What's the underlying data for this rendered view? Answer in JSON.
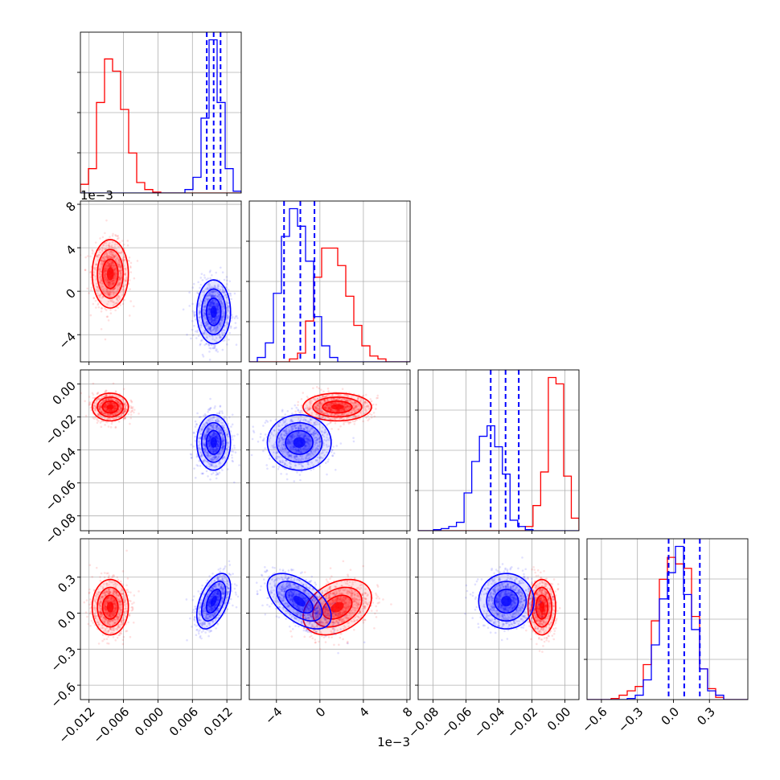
{
  "chart_data": {
    "type": "corner",
    "colors": {
      "red": "#ff0000",
      "blue": "#0000ff",
      "grid": "#b0b0b0",
      "axis": "#000000"
    },
    "grid": true,
    "params": [
      {
        "range": [
          -0.0135,
          0.0145
        ],
        "ticks": [
          -0.012,
          -0.006,
          0.0,
          0.006,
          0.012
        ],
        "tick_labels": [
          "−0.012",
          "−0.006",
          "0.000",
          "0.006",
          "0.012"
        ],
        "offset_text": "",
        "hist_red": [
          0.05,
          0.14,
          0.52,
          0.77,
          0.7,
          0.48,
          0.23,
          0.06,
          0.02,
          0.005,
          0.0,
          0.0,
          0.0,
          0.0,
          0.0,
          0.0,
          0.0,
          0.0,
          0.0,
          0.0
        ],
        "hist_blue": [
          0.0,
          0.0,
          0.0,
          0.0,
          0.0,
          0.0,
          0.0,
          0.0,
          0.0,
          0.0,
          0.0,
          0.0,
          0.0,
          0.02,
          0.09,
          0.43,
          0.88,
          0.52,
          0.14,
          0.01
        ],
        "quantiles_blue": [
          0.0085,
          0.0097,
          0.0109
        ]
      },
      {
        "range": [
          -0.0065,
          0.0083
        ],
        "ticks": [
          -0.004,
          0.0,
          0.004,
          0.008
        ],
        "tick_labels": [
          "−4",
          "0",
          "4",
          "8"
        ],
        "offset_text": "1e−3",
        "hist_red": [
          0.0,
          0.0,
          0.0,
          0.0,
          0.0,
          0.02,
          0.06,
          0.28,
          0.58,
          0.78,
          0.78,
          0.66,
          0.45,
          0.25,
          0.11,
          0.04,
          0.02,
          0.0,
          0.0,
          0.0
        ],
        "hist_blue": [
          0.0,
          0.03,
          0.13,
          0.47,
          0.86,
          1.05,
          0.93,
          0.69,
          0.31,
          0.11,
          0.03,
          0.0,
          0.0,
          0.0,
          0.0,
          0.0,
          0.0,
          0.0,
          0.0,
          0.0
        ],
        "quantiles_blue": [
          -0.0033,
          -0.0018,
          -0.0005
        ]
      },
      {
        "range": [
          -0.089,
          0.0085
        ],
        "ticks": [
          -0.08,
          -0.06,
          -0.04,
          -0.02,
          0.0
        ],
        "tick_labels": [
          "−0.08",
          "−0.06",
          "−0.04",
          "−0.02",
          "0.00"
        ],
        "offset_text": "",
        "hist_red": [
          0.0,
          0.0,
          0.0,
          0.0,
          0.0,
          0.0,
          0.0,
          0.0,
          0.0,
          0.0,
          0.0,
          0.0,
          0.0,
          0.0,
          0.02,
          0.12,
          0.28,
          0.73,
          0.7,
          0.26,
          0.06
        ],
        "hist_blue": [
          0.0,
          0.0,
          0.005,
          0.01,
          0.02,
          0.04,
          0.18,
          0.33,
          0.45,
          0.5,
          0.4,
          0.27,
          0.05,
          0.02,
          0.005,
          0.0,
          0.0,
          0.0,
          0.0,
          0.0,
          0.0
        ],
        "quantiles_blue": [
          -0.045,
          -0.036,
          -0.028
        ]
      },
      {
        "range": [
          -0.72,
          0.62
        ],
        "ticks": [
          -0.6,
          -0.3,
          0.0,
          0.3
        ],
        "tick_labels": [
          "−0.6",
          "−0.3",
          "0.0",
          "0.3"
        ],
        "offset_text": "",
        "hist_red": [
          0.0,
          0.0,
          0.0,
          0.005,
          0.02,
          0.04,
          0.06,
          0.16,
          0.36,
          0.55,
          0.65,
          0.62,
          0.6,
          0.38,
          0.14,
          0.05,
          0.01,
          0.0,
          0.0,
          0.0
        ],
        "hist_blue": [
          0.0,
          0.0,
          0.0,
          0.0,
          0.0,
          0.005,
          0.02,
          0.09,
          0.25,
          0.46,
          0.58,
          0.7,
          0.48,
          0.32,
          0.14,
          0.04,
          0.02,
          0.0,
          0.0,
          0.0
        ],
        "quantiles_blue": [
          -0.04,
          0.09,
          0.22
        ]
      }
    ],
    "groups": [
      {
        "name": "",
        "color": "red",
        "mean": [
          -0.0083,
          0.0016,
          -0.014,
          0.05
        ],
        "sd": [
          0.0015,
          0.0015,
          0.004,
          0.11
        ]
      },
      {
        "name": "",
        "color": "blue",
        "mean": [
          0.0097,
          -0.0019,
          -0.0355,
          0.1
        ],
        "sd": [
          0.0014,
          0.0014,
          0.008,
          0.11
        ]
      }
    ],
    "pair_corr": {
      "1-0": [
        0.0,
        0.0
      ],
      "2-0": [
        0.0,
        0.0
      ],
      "2-1": [
        0.0,
        0.0
      ],
      "3-0": [
        0.0,
        0.5
      ],
      "3-1": [
        0.35,
        -0.55
      ],
      "3-2": [
        0.0,
        0.0
      ]
    }
  }
}
